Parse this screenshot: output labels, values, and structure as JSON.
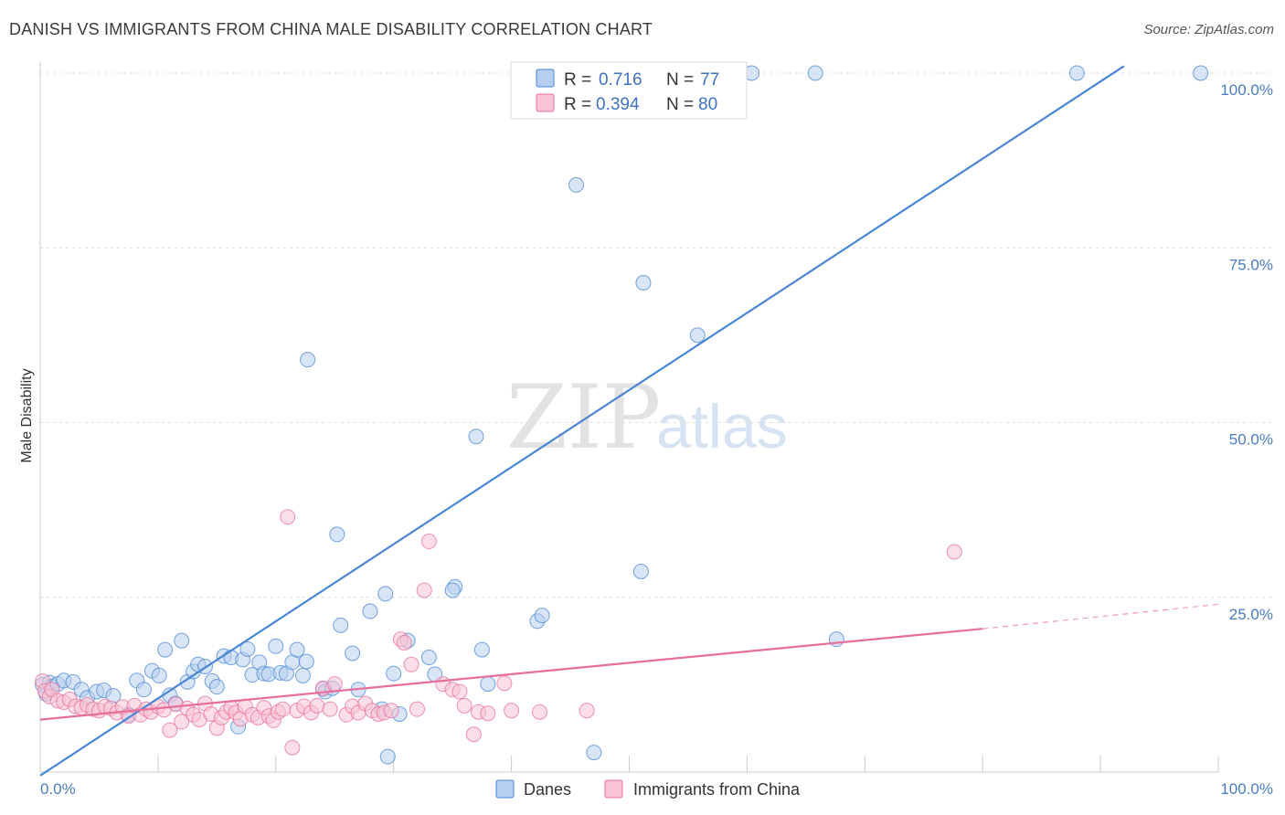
{
  "header": {
    "title": "DANISH VS IMMIGRANTS FROM CHINA MALE DISABILITY CORRELATION CHART",
    "source": "Source: ZipAtlas.com"
  },
  "watermark": {
    "zip": "ZIP",
    "atlas": "atlas"
  },
  "legend": {
    "rows": [
      {
        "r_label": "R =",
        "r_value": "0.716",
        "n_label": "N =",
        "n_value": "77",
        "color": "#8fb5e8"
      },
      {
        "r_label": "R =",
        "r_value": "0.394",
        "n_label": "N =",
        "n_value": "80",
        "color": "#f4a9c1"
      }
    ]
  },
  "bottom_legend": {
    "series1": "Danes",
    "series2": "Immigrants from China"
  },
  "chart_data": {
    "type": "scatter",
    "title": "DANISH VS IMMIGRANTS FROM CHINA MALE DISABILITY CORRELATION CHART",
    "xlabel": "",
    "ylabel": "Male Disability",
    "xlim": [
      0,
      100
    ],
    "ylim": [
      0,
      100
    ],
    "x_tick_labels": [
      "0.0%",
      "100.0%"
    ],
    "y_tick_labels": [
      "25.0%",
      "50.0%",
      "75.0%",
      "100.0%"
    ],
    "y_ticks": [
      25,
      50,
      75,
      100
    ],
    "grid": true,
    "legend_position": "top-center",
    "series": [
      {
        "name": "Danes",
        "color": "#4a86d4",
        "fill": "#b6cff0",
        "trend": {
          "x": [
            0,
            92
          ],
          "y": [
            -0.5,
            101
          ]
        },
        "points": [
          [
            0.2,
            12.5
          ],
          [
            0.5,
            11.2
          ],
          [
            0.8,
            12.8
          ],
          [
            1.0,
            12.2
          ],
          [
            1.5,
            12.6
          ],
          [
            2.0,
            13.1
          ],
          [
            2.8,
            12.9
          ],
          [
            3.5,
            11.8
          ],
          [
            4.0,
            10.6
          ],
          [
            4.8,
            11.5
          ],
          [
            5.4,
            11.7
          ],
          [
            6.2,
            10.9
          ],
          [
            7.5,
            8.2
          ],
          [
            8.2,
            13.1
          ],
          [
            8.8,
            11.8
          ],
          [
            9.5,
            14.5
          ],
          [
            10.1,
            13.8
          ],
          [
            10.6,
            17.5
          ],
          [
            11.0,
            11.0
          ],
          [
            11.5,
            9.8
          ],
          [
            12.0,
            18.8
          ],
          [
            12.5,
            12.9
          ],
          [
            13.0,
            14.4
          ],
          [
            13.4,
            15.4
          ],
          [
            14.0,
            15.1
          ],
          [
            14.6,
            13.0
          ],
          [
            15.0,
            12.2
          ],
          [
            15.6,
            16.6
          ],
          [
            16.2,
            16.4
          ],
          [
            16.8,
            6.5
          ],
          [
            17.2,
            16.1
          ],
          [
            17.6,
            17.6
          ],
          [
            18.0,
            13.9
          ],
          [
            18.6,
            15.7
          ],
          [
            19.0,
            14.1
          ],
          [
            19.4,
            14.0
          ],
          [
            20.0,
            18.0
          ],
          [
            20.4,
            14.2
          ],
          [
            20.9,
            14.1
          ],
          [
            21.4,
            15.7
          ],
          [
            21.8,
            17.5
          ],
          [
            22.3,
            13.8
          ],
          [
            22.6,
            15.8
          ],
          [
            22.7,
            59.0
          ],
          [
            24.0,
            11.9
          ],
          [
            24.2,
            11.5
          ],
          [
            24.8,
            12.0
          ],
          [
            25.2,
            34.0
          ],
          [
            25.5,
            21.0
          ],
          [
            26.5,
            17.0
          ],
          [
            27.0,
            11.8
          ],
          [
            28.0,
            23.0
          ],
          [
            29.0,
            9.0
          ],
          [
            29.3,
            25.5
          ],
          [
            29.5,
            2.2
          ],
          [
            30.0,
            14.1
          ],
          [
            30.5,
            8.3
          ],
          [
            31.2,
            18.8
          ],
          [
            33.0,
            16.4
          ],
          [
            33.5,
            14.0
          ],
          [
            35.2,
            26.5
          ],
          [
            35.0,
            26.0
          ],
          [
            37.0,
            48.0
          ],
          [
            37.5,
            17.5
          ],
          [
            38.0,
            12.6
          ],
          [
            42.2,
            21.6
          ],
          [
            42.6,
            22.4
          ],
          [
            45.5,
            84.0
          ],
          [
            47.0,
            2.8
          ],
          [
            51.0,
            28.7
          ],
          [
            51.2,
            70.0
          ],
          [
            55.8,
            62.5
          ],
          [
            60.4,
            100.0
          ],
          [
            65.8,
            100.0
          ],
          [
            67.6,
            19.0
          ],
          [
            88.0,
            100.0
          ],
          [
            98.5,
            100.0
          ]
        ]
      },
      {
        "name": "Immigrants from China",
        "color": "#e86f9a",
        "fill": "#f8c3d4",
        "trend": {
          "x": [
            0,
            80
          ],
          "y": [
            7.5,
            20.5
          ]
        },
        "trend_dashed": {
          "x": [
            80,
            100
          ],
          "y": [
            20.5,
            24
          ]
        },
        "points": [
          [
            0.2,
            13.0
          ],
          [
            0.4,
            11.6
          ],
          [
            0.8,
            10.8
          ],
          [
            1.0,
            11.8
          ],
          [
            1.5,
            10.2
          ],
          [
            2.0,
            10.0
          ],
          [
            2.5,
            10.4
          ],
          [
            3.0,
            9.4
          ],
          [
            3.5,
            9.2
          ],
          [
            4.0,
            9.6
          ],
          [
            4.5,
            9.0
          ],
          [
            5.0,
            8.8
          ],
          [
            5.5,
            9.4
          ],
          [
            6.0,
            9.1
          ],
          [
            6.5,
            8.5
          ],
          [
            7.0,
            9.3
          ],
          [
            7.5,
            8.0
          ],
          [
            8.0,
            9.5
          ],
          [
            8.5,
            8.2
          ],
          [
            9.0,
            9.0
          ],
          [
            9.4,
            8.6
          ],
          [
            10.0,
            9.4
          ],
          [
            10.5,
            8.9
          ],
          [
            11.0,
            6.0
          ],
          [
            11.5,
            9.7
          ],
          [
            12.0,
            7.2
          ],
          [
            12.5,
            9.1
          ],
          [
            13.0,
            8.2
          ],
          [
            13.5,
            7.5
          ],
          [
            14.0,
            9.8
          ],
          [
            14.5,
            8.3
          ],
          [
            15.0,
            6.3
          ],
          [
            15.4,
            7.8
          ],
          [
            15.8,
            8.6
          ],
          [
            16.2,
            9.2
          ],
          [
            16.6,
            8.5
          ],
          [
            17.0,
            7.6
          ],
          [
            17.4,
            9.4
          ],
          [
            18.0,
            8.2
          ],
          [
            18.5,
            7.8
          ],
          [
            19.0,
            9.2
          ],
          [
            19.4,
            8.0
          ],
          [
            19.8,
            7.4
          ],
          [
            20.2,
            8.6
          ],
          [
            20.6,
            9.0
          ],
          [
            21.0,
            36.5
          ],
          [
            21.4,
            3.5
          ],
          [
            21.8,
            8.8
          ],
          [
            22.4,
            9.4
          ],
          [
            23.0,
            8.5
          ],
          [
            23.5,
            9.5
          ],
          [
            24.0,
            12.0
          ],
          [
            24.6,
            9.0
          ],
          [
            25.0,
            12.6
          ],
          [
            26.0,
            8.2
          ],
          [
            26.5,
            9.4
          ],
          [
            27.0,
            8.5
          ],
          [
            27.6,
            9.8
          ],
          [
            28.2,
            8.8
          ],
          [
            28.7,
            8.3
          ],
          [
            29.2,
            8.5
          ],
          [
            29.8,
            8.8
          ],
          [
            30.6,
            19.0
          ],
          [
            30.9,
            18.5
          ],
          [
            31.5,
            15.4
          ],
          [
            32.0,
            9.0
          ],
          [
            32.6,
            26.0
          ],
          [
            33.0,
            33.0
          ],
          [
            34.2,
            12.6
          ],
          [
            35.0,
            11.8
          ],
          [
            35.6,
            11.5
          ],
          [
            36.0,
            9.5
          ],
          [
            36.8,
            5.4
          ],
          [
            37.2,
            8.6
          ],
          [
            38.0,
            8.4
          ],
          [
            39.4,
            12.7
          ],
          [
            40.0,
            8.8
          ],
          [
            42.4,
            8.6
          ],
          [
            46.4,
            8.8
          ],
          [
            77.6,
            31.5
          ]
        ]
      }
    ]
  }
}
